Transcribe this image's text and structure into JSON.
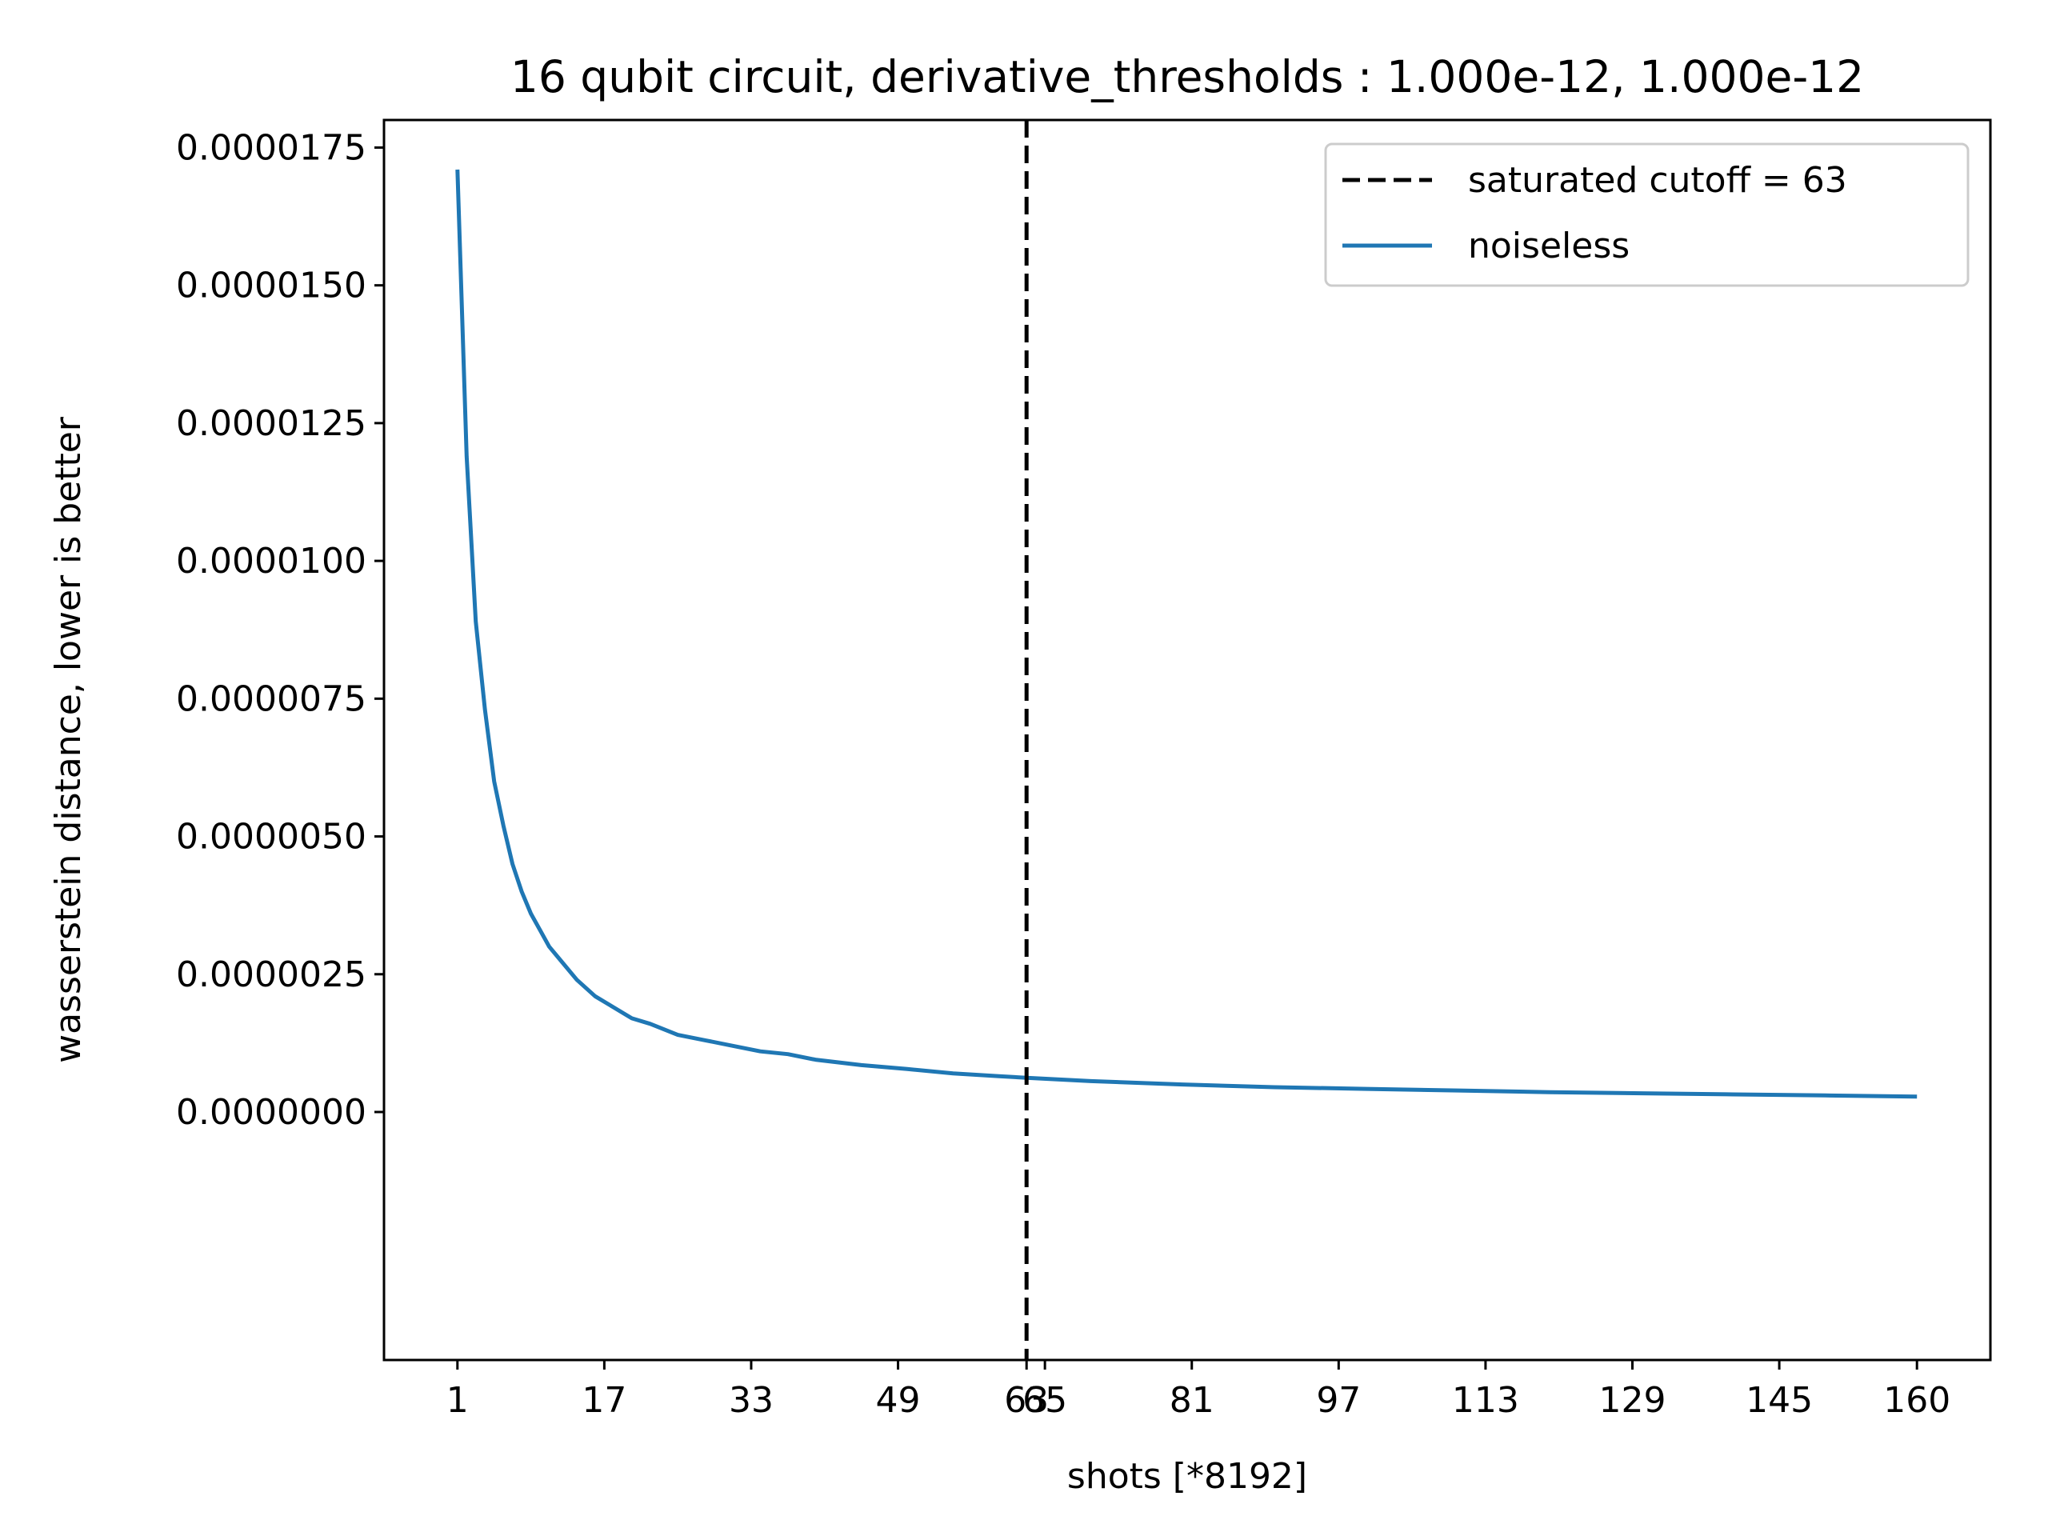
{
  "chart_data": {
    "type": "line",
    "title": "16 qubit circuit, derivative_thresholds : 1.000e-12, 1.000e-12",
    "xlabel": "shots [*8192]",
    "ylabel": "wasserstein distance, lower is better",
    "xlim": [
      -7,
      168
    ],
    "ylim": [
      -4.5e-06,
      1.8e-05
    ],
    "xticks": [
      1,
      17,
      33,
      49,
      63,
      65,
      81,
      97,
      113,
      129,
      145,
      160
    ],
    "xtick_labels": [
      "1",
      "17",
      "33",
      "49",
      "63",
      "65",
      "81",
      "97",
      "113",
      "129",
      "145",
      "160"
    ],
    "yticks": [
      0,
      2.5e-06,
      5e-06,
      7.5e-06,
      1e-05,
      1.25e-05,
      1.5e-05,
      1.75e-05
    ],
    "ytick_labels": [
      "0.0000000",
      "0.0000025",
      "0.0000050",
      "0.0000075",
      "0.0000100",
      "0.0000125",
      "0.0000150",
      "0.0000175"
    ],
    "grid": false,
    "legend_position": "top-right",
    "vline": {
      "x": 63,
      "label": "saturated cutoff = 63",
      "color": "#000000",
      "style": "dashed"
    },
    "series": [
      {
        "name": "noiseless",
        "color": "#1f77b4",
        "x": [
          1,
          2,
          3,
          4,
          5,
          6,
          7,
          8,
          9,
          10,
          11,
          12,
          14,
          16,
          18,
          20,
          22,
          25,
          28,
          31,
          34,
          37,
          40,
          45,
          50,
          55,
          60,
          63,
          70,
          80,
          90,
          100,
          110,
          120,
          130,
          140,
          150,
          160
        ],
        "values": [
          1.71e-05,
          1.19e-05,
          8.9e-06,
          7.3e-06,
          6e-06,
          5.2e-06,
          4.5e-06,
          4e-06,
          3.6e-06,
          3.3e-06,
          3e-06,
          2.8e-06,
          2.4e-06,
          2.1e-06,
          1.9e-06,
          1.7e-06,
          1.6e-06,
          1.4e-06,
          1.3e-06,
          1.2e-06,
          1.1e-06,
          1.05e-06,
          9.5e-07,
          8.5e-07,
          7.8e-07,
          7e-07,
          6.5e-07,
          6.2e-07,
          5.6e-07,
          5e-07,
          4.5e-07,
          4.2e-07,
          3.9e-07,
          3.6e-07,
          3.4e-07,
          3.2e-07,
          3e-07,
          2.8e-07
        ]
      }
    ]
  }
}
